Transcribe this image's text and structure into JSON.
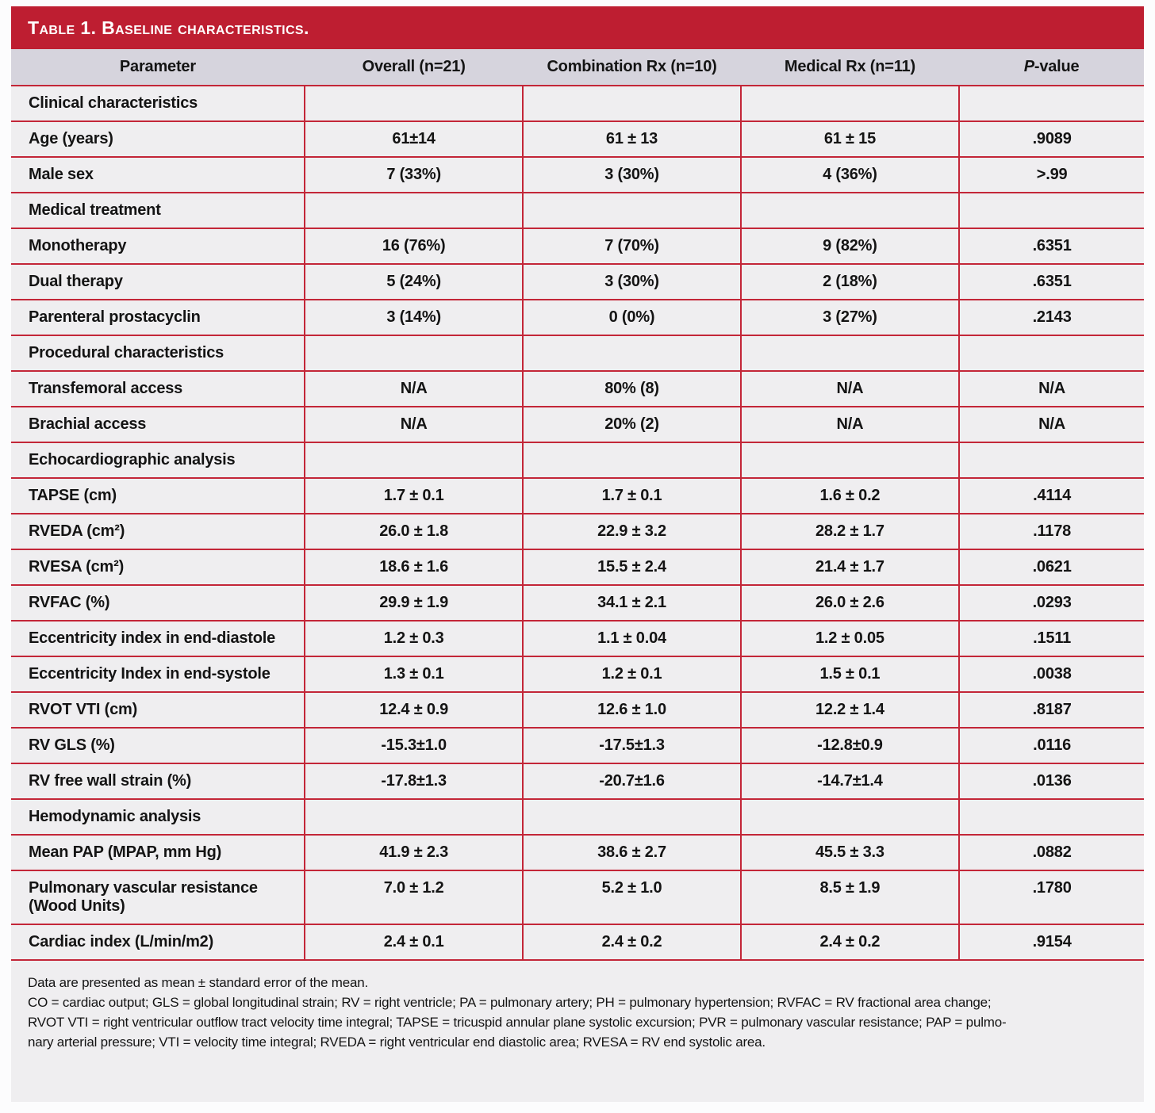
{
  "title": "Table 1. Baseline characteristics.",
  "table": {
    "columns": [
      "Parameter",
      "Overall (n=21)",
      "Combination Rx (n=10)",
      "Medical Rx (n=11)",
      "P-value"
    ],
    "rows": [
      {
        "type": "section",
        "label": "Clinical characteristics",
        "values": [
          "",
          "",
          "",
          ""
        ]
      },
      {
        "type": "data",
        "label": "Age (years)",
        "values": [
          "61±14",
          "61 ± 13",
          "61 ± 15",
          ".9089"
        ]
      },
      {
        "type": "data",
        "label": "Male sex",
        "values": [
          "7 (33%)",
          "3 (30%)",
          "4 (36%)",
          ">.99"
        ]
      },
      {
        "type": "section",
        "label": "Medical treatment",
        "values": [
          "",
          "",
          "",
          ""
        ]
      },
      {
        "type": "data",
        "label": "Monotherapy",
        "values": [
          "16 (76%)",
          "7 (70%)",
          "9 (82%)",
          ".6351"
        ]
      },
      {
        "type": "data",
        "label": "Dual therapy",
        "values": [
          "5 (24%)",
          "3 (30%)",
          "2 (18%)",
          ".6351"
        ]
      },
      {
        "type": "data",
        "label": "Parenteral prostacyclin",
        "values": [
          "3 (14%)",
          "0 (0%)",
          "3 (27%)",
          ".2143"
        ]
      },
      {
        "type": "section",
        "label": "Procedural characteristics",
        "values": [
          "",
          "",
          "",
          ""
        ]
      },
      {
        "type": "data",
        "label": "Transfemoral access",
        "values": [
          "N/A",
          "80% (8)",
          "N/A",
          "N/A"
        ]
      },
      {
        "type": "data",
        "label": "Brachial access",
        "values": [
          "N/A",
          "20% (2)",
          "N/A",
          "N/A"
        ]
      },
      {
        "type": "section",
        "label": "Echocardiographic analysis",
        "values": [
          "",
          "",
          "",
          ""
        ]
      },
      {
        "type": "data",
        "label": "TAPSE (cm)",
        "values": [
          "1.7 ± 0.1",
          "1.7 ± 0.1",
          "1.6 ± 0.2",
          ".4114"
        ]
      },
      {
        "type": "data",
        "label": "RVEDA (cm²)",
        "values": [
          "26.0 ± 1.8",
          "22.9 ± 3.2",
          "28.2 ± 1.7",
          ".1178"
        ]
      },
      {
        "type": "data",
        "label": "RVESA (cm²)",
        "values": [
          "18.6 ± 1.6",
          "15.5 ± 2.4",
          "21.4 ± 1.7",
          ".0621"
        ]
      },
      {
        "type": "data",
        "label": "RVFAC (%)",
        "values": [
          "29.9 ± 1.9",
          "34.1 ± 2.1",
          "26.0 ± 2.6",
          ".0293"
        ]
      },
      {
        "type": "data",
        "label": "Eccentricity index in end-diastole",
        "values": [
          "1.2 ± 0.3",
          "1.1 ± 0.04",
          "1.2 ± 0.05",
          ".1511"
        ]
      },
      {
        "type": "data",
        "label": "Eccentricity Index in end-systole",
        "values": [
          "1.3 ± 0.1",
          "1.2 ± 0.1",
          "1.5 ± 0.1",
          ".0038"
        ]
      },
      {
        "type": "data",
        "label": "RVOT VTI (cm)",
        "values": [
          "12.4 ± 0.9",
          "12.6 ± 1.0",
          "12.2 ± 1.4",
          ".8187"
        ]
      },
      {
        "type": "data",
        "label": "RV GLS (%)",
        "values": [
          "-15.3±1.0",
          "-17.5±1.3",
          "-12.8±0.9",
          ".0116"
        ]
      },
      {
        "type": "data",
        "label": "RV free wall strain (%)",
        "values": [
          "-17.8±1.3",
          "-20.7±1.6",
          "-14.7±1.4",
          ".0136"
        ]
      },
      {
        "type": "section",
        "label": "Hemodynamic analysis",
        "values": [
          "",
          "",
          "",
          ""
        ]
      },
      {
        "type": "data",
        "label": "Mean PAP (MPAP, mm Hg)",
        "values": [
          "41.9 ± 2.3",
          "38.6 ± 2.7",
          "45.5 ± 3.3",
          ".0882"
        ]
      },
      {
        "type": "data",
        "label": "Pulmonary vascular resistance (Wood Units)",
        "values": [
          "7.0 ± 1.2",
          "5.2 ± 1.0",
          "8.5 ± 1.9",
          ".1780"
        ]
      },
      {
        "type": "data",
        "label": "Cardiac index (L/min/m2)",
        "values": [
          "2.4 ± 0.1",
          "2.4 ± 0.2",
          "2.4 ± 0.2",
          ".9154"
        ]
      }
    ]
  },
  "footnotes": {
    "lines": [
      "Data are presented as mean ± standard error of the mean.",
      "CO = cardiac output; GLS = global longitudinal strain; RV = right ventricle; PA = pulmonary artery; PH = pulmonary hypertension; RVFAC = RV fractional area change;",
      "RVOT VTI = right ventricular outflow tract velocity time integral; TAPSE = tricuspid annular plane systolic excursion; PVR = pulmonary vascular resistance; PAP = pulmo-",
      "nary arterial pressure; VTI = velocity time integral; RVEDA = right ventricular end diastolic area; RVESA = RV end systolic area."
    ]
  },
  "colors": {
    "header_bar": "#be1e31",
    "grid_line": "#c32638",
    "column_header_bg": "#d6d4dd",
    "row_bg": "#efeef0",
    "page_bg": "#fcfcfd",
    "body_text": "#141414",
    "title_text": "#ffffff"
  }
}
